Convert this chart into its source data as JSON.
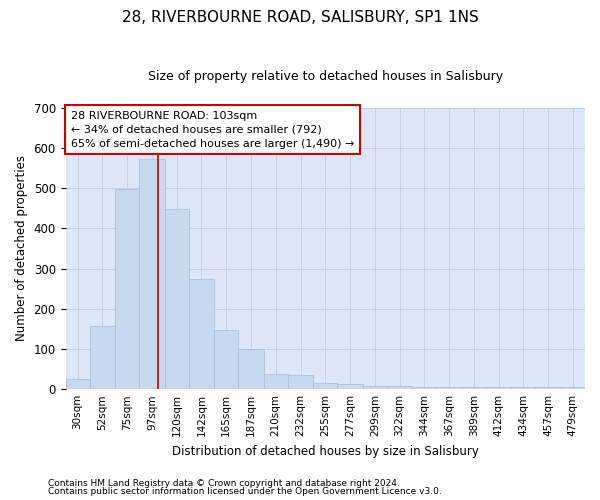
{
  "title": "28, RIVERBOURNE ROAD, SALISBURY, SP1 1NS",
  "subtitle": "Size of property relative to detached houses in Salisbury",
  "xlabel": "Distribution of detached houses by size in Salisbury",
  "ylabel": "Number of detached properties",
  "footnote1": "Contains HM Land Registry data © Crown copyright and database right 2024.",
  "footnote2": "Contains public sector information licensed under the Open Government Licence v3.0.",
  "bar_color": "#c8d8ee",
  "bar_edgecolor": "#a8bcd8",
  "grid_color": "#c0ccdc",
  "annotation_line1": "28 RIVERBOURNE ROAD: 103sqm",
  "annotation_line2": "← 34% of detached houses are smaller (792)",
  "annotation_line3": "65% of semi-detached houses are larger (1,490) →",
  "annotation_box_color": "#ffffff",
  "annotation_box_edgecolor": "#cc0000",
  "vline_x": 103,
  "vline_color": "#cc0000",
  "categories": [
    "30sqm",
    "52sqm",
    "75sqm",
    "97sqm",
    "120sqm",
    "142sqm",
    "165sqm",
    "187sqm",
    "210sqm",
    "232sqm",
    "255sqm",
    "277sqm",
    "299sqm",
    "322sqm",
    "344sqm",
    "367sqm",
    "389sqm",
    "412sqm",
    "434sqm",
    "457sqm",
    "479sqm"
  ],
  "bin_edges": [
    19,
    41,
    64,
    86,
    109,
    131,
    154,
    176,
    199,
    221,
    244,
    266,
    289,
    311,
    334,
    356,
    379,
    401,
    424,
    446,
    469,
    491
  ],
  "bar_heights": [
    25,
    157,
    497,
    572,
    447,
    275,
    147,
    100,
    37,
    35,
    15,
    14,
    8,
    7,
    6,
    6,
    6,
    6,
    6,
    6,
    6
  ],
  "ylim": [
    0,
    700
  ],
  "yticks": [
    0,
    100,
    200,
    300,
    400,
    500,
    600,
    700
  ],
  "background_color": "#dce8f8",
  "title_fontsize": 11,
  "subtitle_fontsize": 9
}
